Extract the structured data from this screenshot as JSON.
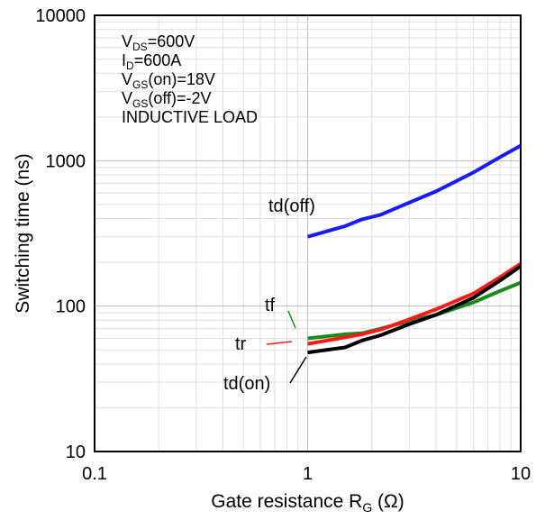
{
  "chart_data": {
    "type": "line",
    "x_scale": "log",
    "y_scale": "log",
    "xlim": [
      0.1,
      10
    ],
    "ylim": [
      10,
      10000
    ],
    "grid": true,
    "x_ticks": [
      "0.1",
      "1",
      "10"
    ],
    "y_ticks": [
      "10",
      "100",
      "1000",
      "10000"
    ],
    "xlabel": {
      "main": "Gate resistance R",
      "sub": "G",
      "tail": " (Ω)"
    },
    "ylabel": "Switching time (ns)",
    "conditions": [
      {
        "main": "V",
        "sub": "DS",
        "tail": "=600V"
      },
      {
        "main": "I",
        "sub": "D",
        "tail": "=600A"
      },
      {
        "main": "V",
        "sub": "GS",
        "tail": "(on)=18V"
      },
      {
        "main": "V",
        "sub": "GS",
        "tail": "(off)=-2V"
      },
      {
        "main": "INDUCTIVE LOAD",
        "sub": "",
        "tail": ""
      }
    ],
    "series": [
      {
        "name": "td(off)",
        "color": "#1a1aff",
        "x": [
          1.0,
          1.5,
          1.8,
          2.2,
          3.0,
          4.0,
          6.0,
          8.0,
          10.0
        ],
        "y": [
          300,
          355,
          395,
          425,
          515,
          615,
          830,
          1060,
          1270
        ]
      },
      {
        "name": "tf",
        "color": "#1a8a1a",
        "x": [
          1.0,
          1.5,
          1.8,
          2.2,
          3.0,
          4.0,
          6.0,
          8.0,
          10.0
        ],
        "y": [
          60,
          64,
          65,
          70,
          79,
          87,
          106,
          127,
          145
        ]
      },
      {
        "name": "tr",
        "color": "#ff1a1a",
        "x": [
          1.0,
          1.5,
          1.8,
          2.2,
          3.0,
          4.0,
          6.0,
          8.0,
          10.0
        ],
        "y": [
          55,
          61,
          64,
          69,
          81,
          95,
          122,
          158,
          196
        ]
      },
      {
        "name": "td(on)",
        "color": "#000000",
        "x": [
          1.0,
          1.5,
          1.8,
          2.2,
          3.0,
          4.0,
          6.0,
          8.0,
          10.0
        ],
        "y": [
          48,
          52,
          58,
          63,
          75,
          87,
          114,
          150,
          188
        ]
      }
    ],
    "annotations": [
      {
        "text": "td(off)",
        "series": "td(off)"
      },
      {
        "text": "tf",
        "series": "tf"
      },
      {
        "text": "tr",
        "series": "tr"
      },
      {
        "text": "td(on)",
        "series": "td(on)"
      }
    ]
  }
}
